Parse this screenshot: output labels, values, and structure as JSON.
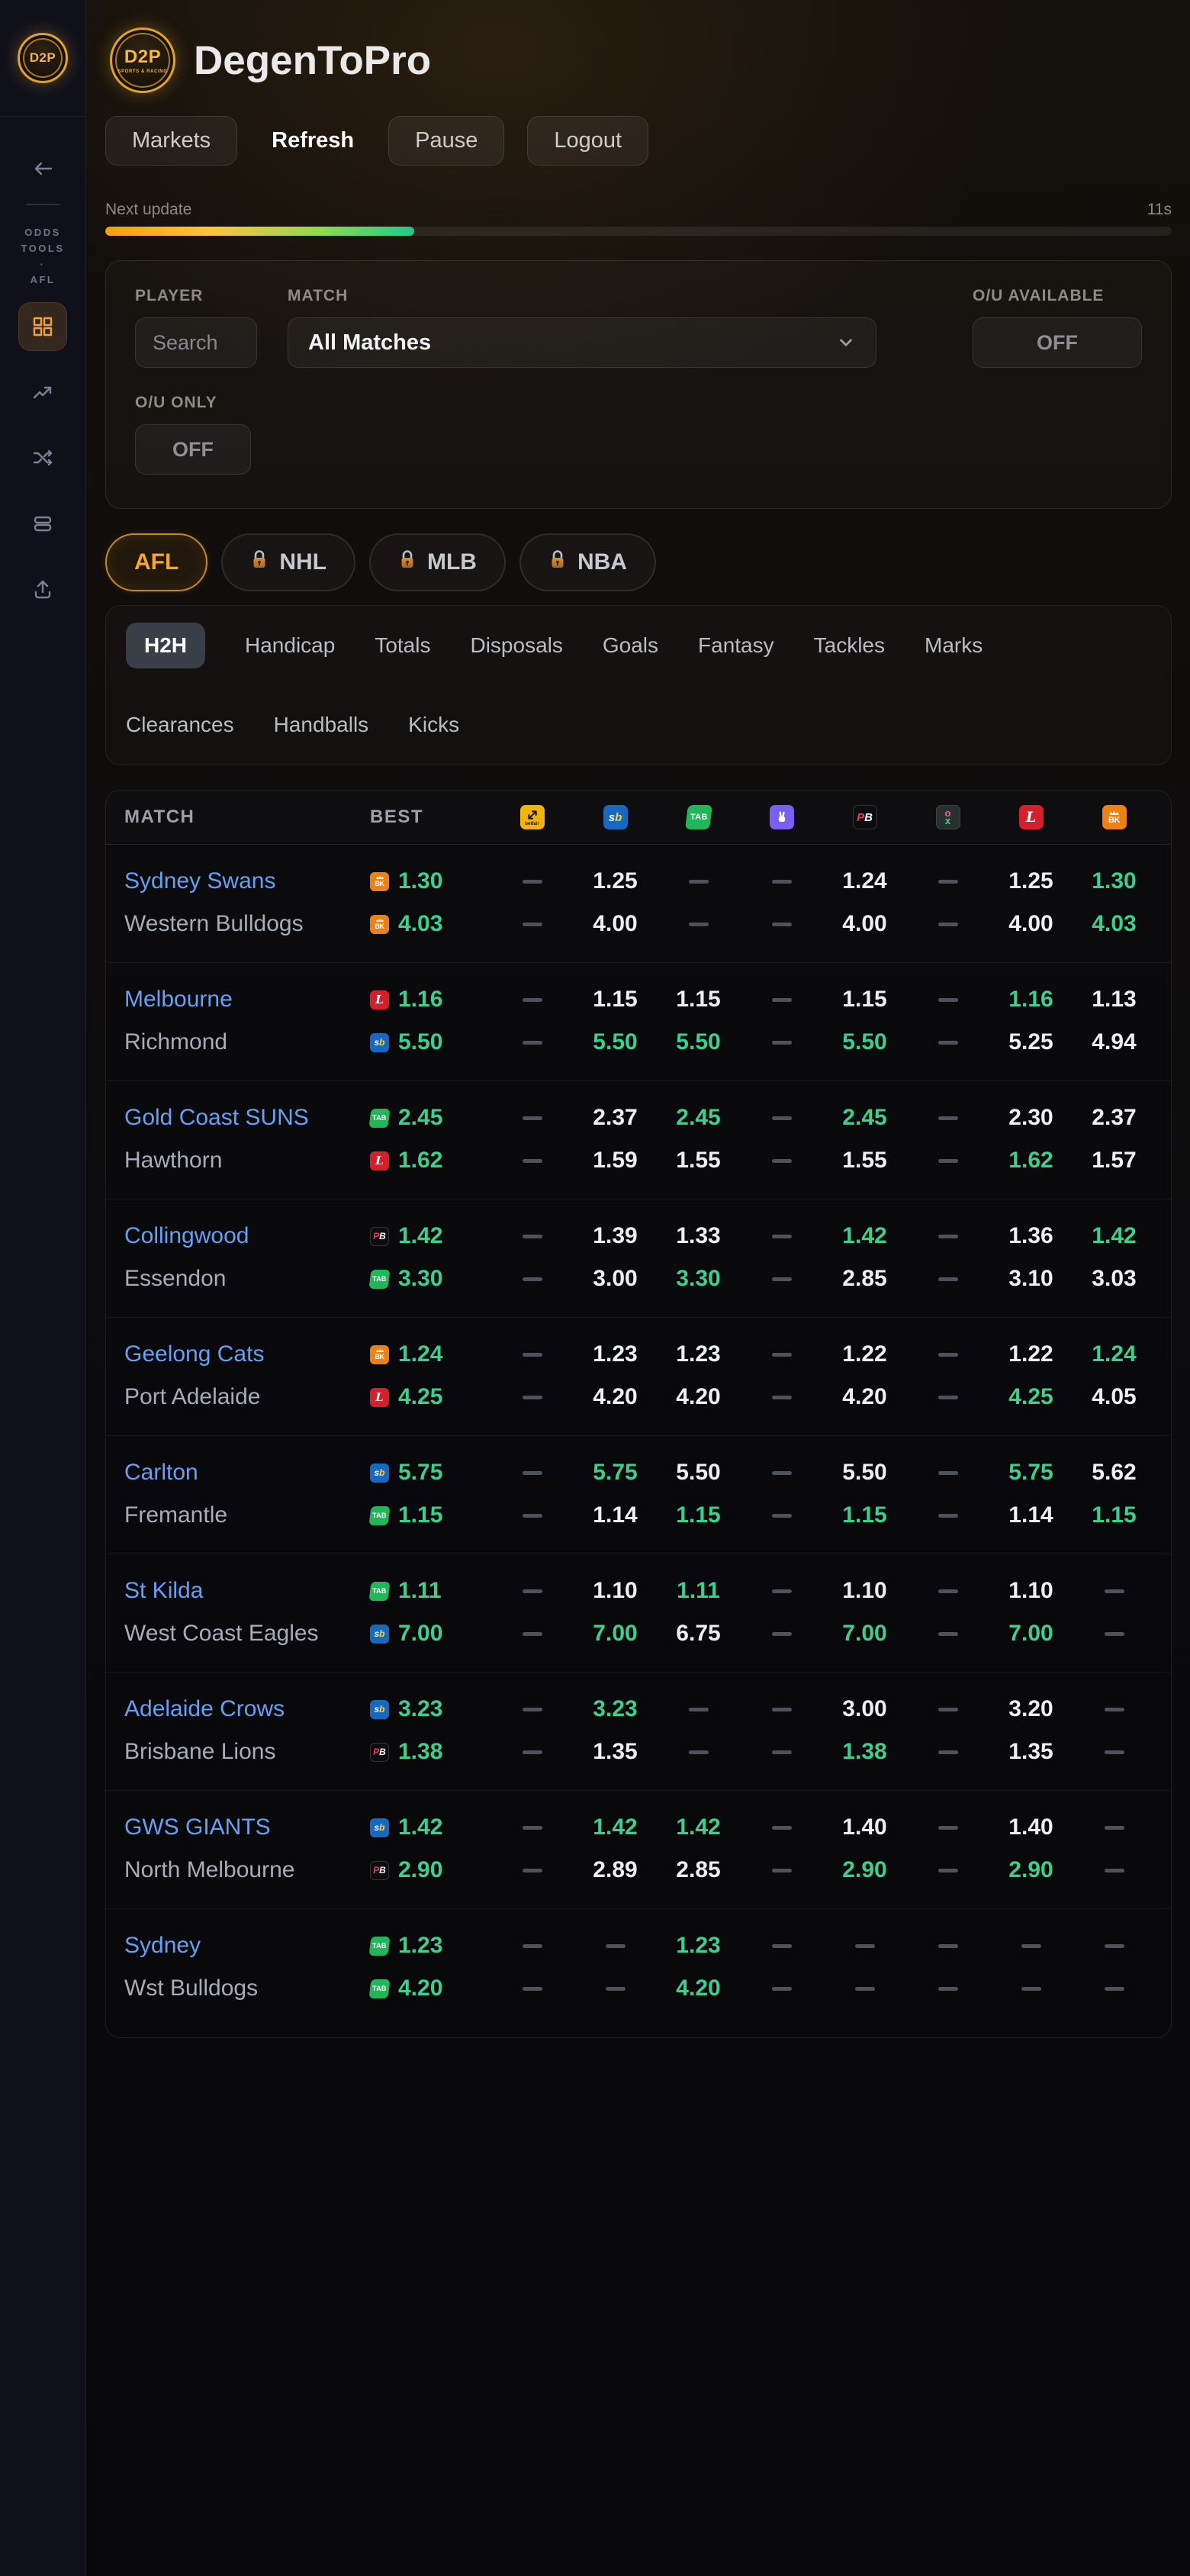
{
  "app": {
    "title": "DegenToPro",
    "logo_text": "D2P",
    "logo_subtext": "SPORTS & RACING"
  },
  "sidebar": {
    "section_lines": [
      "ODDS",
      "TOOLS",
      "·",
      "AFL"
    ]
  },
  "toolbar": {
    "markets": "Markets",
    "refresh": "Refresh",
    "pause": "Pause",
    "logout": "Logout"
  },
  "update": {
    "label": "Next update",
    "countdown": "11s",
    "progress_pct": 29
  },
  "filters": {
    "player_label": "PLAYER",
    "player_placeholder": "Search",
    "match_label": "MATCH",
    "match_value": "All Matches",
    "ou_available_label": "O/U AVAILABLE",
    "ou_available_value": "OFF",
    "ou_only_label": "O/U ONLY",
    "ou_only_value": "OFF"
  },
  "sports": [
    {
      "label": "AFL",
      "active": true,
      "locked": false
    },
    {
      "label": "NHL",
      "active": false,
      "locked": true
    },
    {
      "label": "MLB",
      "active": false,
      "locked": true
    },
    {
      "label": "NBA",
      "active": false,
      "locked": true
    }
  ],
  "market_tabs": {
    "active": "H2H",
    "items": [
      "H2H",
      "Handicap",
      "Totals",
      "Disposals",
      "Goals",
      "Fantasy",
      "Tackles",
      "Marks",
      "Clearances",
      "Handballs",
      "Kicks"
    ],
    "wrap_after": 8
  },
  "bookmakers": [
    {
      "id": "betfair",
      "glyph": "betfair",
      "label": "betfair",
      "color": "#f2b30d"
    },
    {
      "id": "sportsbet",
      "glyph": "sb",
      "label": "sb",
      "color": "#1668c0"
    },
    {
      "id": "tab",
      "glyph": "tab",
      "label": "TAB",
      "color": "#22b65a"
    },
    {
      "id": "hand",
      "glyph": "hand",
      "label": "hand",
      "color": "#7b5ff0"
    },
    {
      "id": "pb",
      "glyph": "pb",
      "label": "PB",
      "color": "#0d0d10"
    },
    {
      "id": "ox",
      "glyph": "ox",
      "label": "ox",
      "color": "#26322b"
    },
    {
      "id": "ladbrokes",
      "glyph": "l",
      "label": "L",
      "color": "#d2202c"
    },
    {
      "id": "bk",
      "glyph": "bk",
      "label": "BK",
      "color": "#ef8013"
    }
  ],
  "table": {
    "match_header": "MATCH",
    "best_header": "BEST",
    "matches": [
      {
        "home": {
          "name": "Sydney Swans",
          "best_bm": "bk",
          "best": "1.30",
          "cells": [
            "-",
            "1.25",
            "-",
            "-",
            "1.24",
            "-",
            "1.25",
            "1.30g"
          ]
        },
        "away": {
          "name": "Western Bulldogs",
          "best_bm": "bk",
          "best": "4.03",
          "cells": [
            "-",
            "4.00",
            "-",
            "-",
            "4.00",
            "-",
            "4.00",
            "4.03g"
          ]
        }
      },
      {
        "home": {
          "name": "Melbourne",
          "best_bm": "ladbrokes",
          "best": "1.16",
          "cells": [
            "-",
            "1.15",
            "1.15",
            "-",
            "1.15",
            "-",
            "1.16g",
            "1.13"
          ]
        },
        "away": {
          "name": "Richmond",
          "best_bm": "sportsbet",
          "best": "5.50",
          "cells": [
            "-",
            "5.50g",
            "5.50g",
            "-",
            "5.50g",
            "-",
            "5.25",
            "4.94"
          ]
        }
      },
      {
        "home": {
          "name": "Gold Coast SUNS",
          "best_bm": "tab",
          "best": "2.45",
          "cells": [
            "-",
            "2.37",
            "2.45g",
            "-",
            "2.45g",
            "-",
            "2.30",
            "2.37"
          ]
        },
        "away": {
          "name": "Hawthorn",
          "best_bm": "ladbrokes",
          "best": "1.62",
          "cells": [
            "-",
            "1.59",
            "1.55",
            "-",
            "1.55",
            "-",
            "1.62g",
            "1.57"
          ]
        }
      },
      {
        "home": {
          "name": "Collingwood",
          "best_bm": "pb",
          "best": "1.42",
          "cells": [
            "-",
            "1.39",
            "1.33",
            "-",
            "1.42g",
            "-",
            "1.36",
            "1.42g"
          ]
        },
        "away": {
          "name": "Essendon",
          "best_bm": "tab",
          "best": "3.30",
          "cells": [
            "-",
            "3.00",
            "3.30g",
            "-",
            "2.85",
            "-",
            "3.10",
            "3.03"
          ]
        }
      },
      {
        "home": {
          "name": "Geelong Cats",
          "best_bm": "bk",
          "best": "1.24",
          "cells": [
            "-",
            "1.23",
            "1.23",
            "-",
            "1.22",
            "-",
            "1.22",
            "1.24g"
          ]
        },
        "away": {
          "name": "Port Adelaide",
          "best_bm": "ladbrokes",
          "best": "4.25",
          "cells": [
            "-",
            "4.20",
            "4.20",
            "-",
            "4.20",
            "-",
            "4.25g",
            "4.05"
          ]
        }
      },
      {
        "home": {
          "name": "Carlton",
          "best_bm": "sportsbet",
          "best": "5.75",
          "cells": [
            "-",
            "5.75g",
            "5.50",
            "-",
            "5.50",
            "-",
            "5.75g",
            "5.62"
          ]
        },
        "away": {
          "name": "Fremantle",
          "best_bm": "tab",
          "best": "1.15",
          "cells": [
            "-",
            "1.14",
            "1.15g",
            "-",
            "1.15g",
            "-",
            "1.14",
            "1.15g"
          ]
        }
      },
      {
        "home": {
          "name": "St Kilda",
          "best_bm": "tab",
          "best": "1.11",
          "cells": [
            "-",
            "1.10",
            "1.11g",
            "-",
            "1.10",
            "-",
            "1.10",
            "-"
          ]
        },
        "away": {
          "name": "West Coast Eagles",
          "best_bm": "sportsbet",
          "best": "7.00",
          "cells": [
            "-",
            "7.00g",
            "6.75",
            "-",
            "7.00g",
            "-",
            "7.00g",
            "-"
          ]
        }
      },
      {
        "home": {
          "name": "Adelaide Crows",
          "best_bm": "sportsbet",
          "best": "3.23",
          "cells": [
            "-",
            "3.23g",
            "-",
            "-",
            "3.00",
            "-",
            "3.20",
            "-"
          ]
        },
        "away": {
          "name": "Brisbane Lions",
          "best_bm": "pb",
          "best": "1.38",
          "cells": [
            "-",
            "1.35",
            "-",
            "-",
            "1.38g",
            "-",
            "1.35",
            "-"
          ]
        }
      },
      {
        "home": {
          "name": "GWS GIANTS",
          "best_bm": "sportsbet",
          "best": "1.42",
          "cells": [
            "-",
            "1.42g",
            "1.42g",
            "-",
            "1.40",
            "-",
            "1.40",
            "-"
          ]
        },
        "away": {
          "name": "North Melbourne",
          "best_bm": "pb",
          "best": "2.90",
          "cells": [
            "-",
            "2.89",
            "2.85",
            "-",
            "2.90g",
            "-",
            "2.90g",
            "-"
          ]
        }
      },
      {
        "home": {
          "name": "Sydney",
          "best_bm": "tab",
          "best": "1.23",
          "cells": [
            "-",
            "-",
            "1.23g",
            "-",
            "-",
            "-",
            "-",
            "-"
          ]
        },
        "away": {
          "name": "Wst Bulldogs",
          "best_bm": "tab",
          "best": "4.20",
          "cells": [
            "-",
            "-",
            "4.20g",
            "-",
            "-",
            "-",
            "-",
            "-"
          ]
        }
      }
    ]
  }
}
